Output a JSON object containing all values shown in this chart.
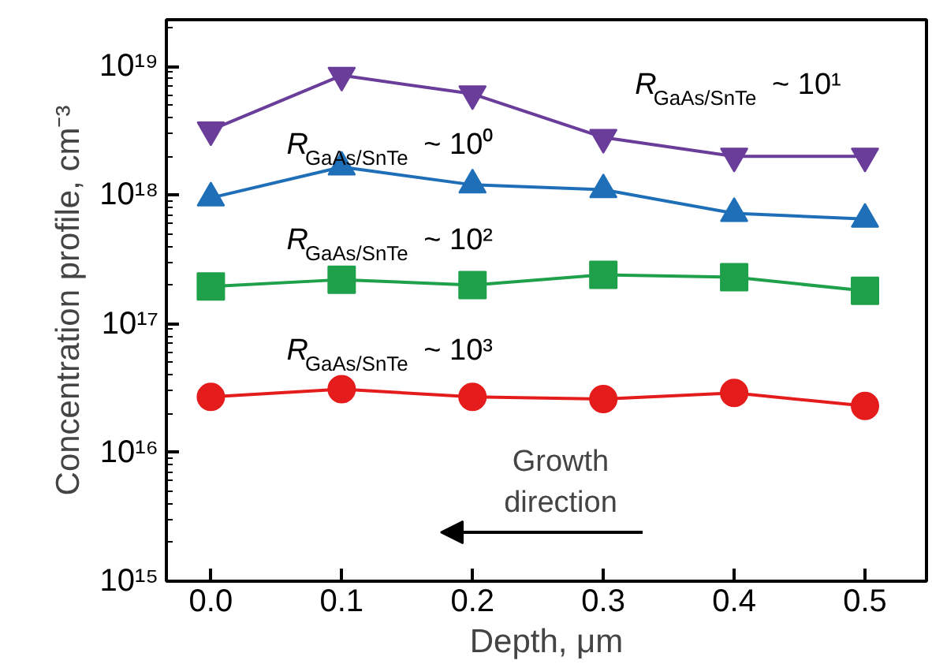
{
  "chart_data": {
    "type": "line",
    "xlabel": "Depth, μm",
    "ylabel": "Concentration profile, cm⁻³",
    "log": "y",
    "line_style": "solid",
    "grid": false,
    "x": [
      0.0,
      0.1,
      0.2,
      0.3,
      0.4,
      0.5
    ],
    "xlim": [
      -0.034,
      0.547
    ],
    "xticks": [
      {
        "value": 0,
        "label": "0.0"
      },
      0.1,
      0.2,
      0.3,
      0.4,
      0.5
    ],
    "ylim": [
      1000000000000000.0,
      2.3e+19
    ],
    "yticks": [
      {
        "value": 1000000000000000.0,
        "label": "10¹⁵"
      },
      {
        "value": 1e+16,
        "label": "10¹⁶"
      },
      {
        "value": 1e+17,
        "label": "10¹⁷"
      },
      {
        "value": 1e+18,
        "label": "10¹⁸"
      },
      {
        "value": 1e+19,
        "label": "10¹⁹"
      }
    ],
    "series": [
      {
        "name": "R$_{GaAs/SnTe}$ ~ 10¹",
        "color": "#6a3d9a",
        "marker": "triangle_down",
        "values": [
          3.2e+18,
          8.5e+18,
          6.1e+18,
          2.8e+18,
          2e+18,
          2e+18
        ]
      },
      {
        "name": "R$_{GaAs/SnTe}$ ~ 10⁰",
        "color": "#1f6fb8",
        "marker": "triangle",
        "values": [
          9.5e+17,
          1.65e+18,
          1.2e+18,
          1.1e+18,
          7.2e+17,
          6.5e+17
        ]
      },
      {
        "name": "R$_{GaAs/SnTe}$ ~ 10²",
        "color": "#1fa04a",
        "marker": "square",
        "values": [
          1.95e+17,
          2.2e+17,
          2e+17,
          2.4e+17,
          2.3e+17,
          1.8e+17
        ]
      },
      {
        "name": "R$_{GaAs/SnTe}$ ~ 10³",
        "color": "#e51c1c",
        "marker": "circle",
        "values": [
          2.7e+16,
          3.1e+16,
          2.7e+16,
          2.6e+16,
          2.9e+16,
          2.3e+16
        ]
      }
    ],
    "annotations": [
      "Growth direction"
    ]
  }
}
